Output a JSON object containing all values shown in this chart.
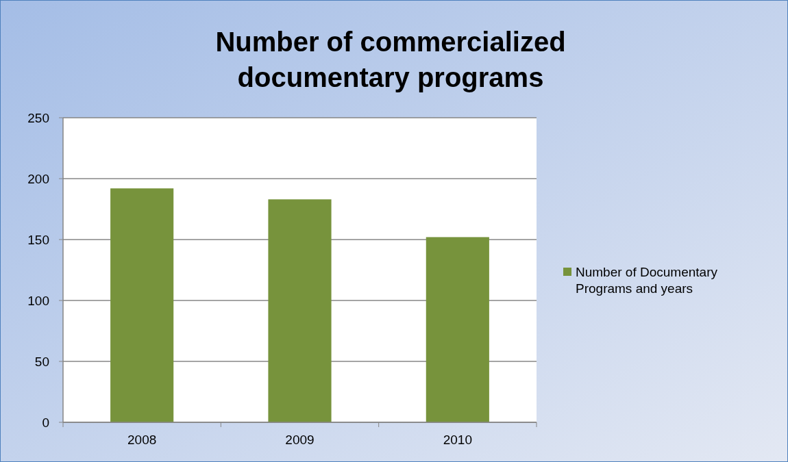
{
  "chart_data": {
    "type": "bar",
    "title": "Number of commercialized documentary programs",
    "categories": [
      "2008",
      "2009",
      "2010"
    ],
    "series": [
      {
        "name": "Number of Documentary Programs and years",
        "color": "#77933c",
        "values": [
          192,
          183,
          152
        ]
      }
    ],
    "ylim": [
      0,
      250
    ],
    "yticks": [
      0,
      50,
      100,
      150,
      200,
      250
    ],
    "grid": "y",
    "legend": "right"
  }
}
